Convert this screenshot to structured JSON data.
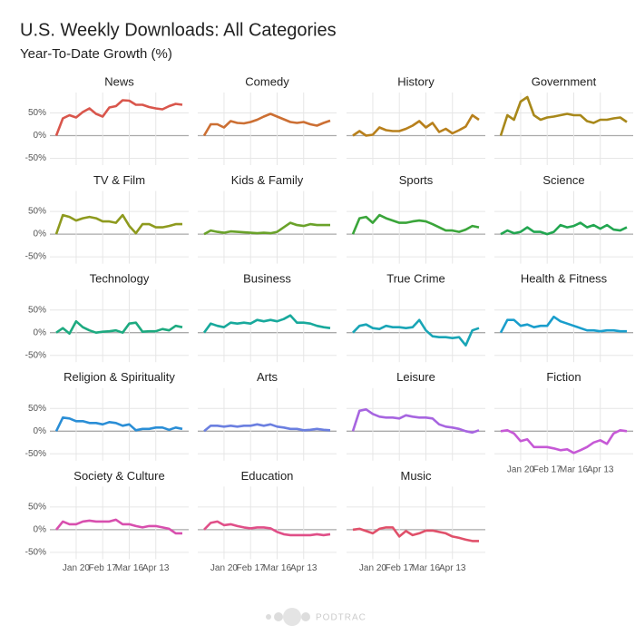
{
  "chart_data": {
    "type": "line",
    "title": "U.S. Weekly Downloads: All Categories",
    "subtitle": "Year-To-Date Growth (%)",
    "source": "PODTRAC",
    "x": [
      "Dec 30",
      "Jan 6",
      "Jan 13",
      "Jan 20",
      "Jan 27",
      "Feb 3",
      "Feb 10",
      "Feb 17",
      "Feb 24",
      "Mar 2",
      "Mar 9",
      "Mar 16",
      "Mar 23",
      "Mar 30",
      "Apr 6",
      "Apr 13",
      "Apr 20",
      "Apr 27",
      "May 4",
      "May 11"
    ],
    "xticks": [
      "Jan 20",
      "Feb 17",
      "Mar 16",
      "Apr 13"
    ],
    "ylim": [
      -65,
      95
    ],
    "yticks": [
      {
        "value": -50,
        "label": "-50%"
      },
      {
        "value": 0,
        "label": "0%"
      },
      {
        "value": 50,
        "label": "50%"
      }
    ],
    "grid": true,
    "series": [
      {
        "name": "News",
        "color": "#d9564c",
        "values": [
          0,
          38,
          45,
          40,
          52,
          60,
          48,
          42,
          62,
          65,
          78,
          77,
          68,
          68,
          63,
          60,
          58,
          65,
          70,
          68
        ]
      },
      {
        "name": "Comedy",
        "color": "#cc6f33",
        "values": [
          0,
          25,
          25,
          18,
          32,
          28,
          27,
          30,
          35,
          42,
          48,
          42,
          36,
          30,
          28,
          30,
          25,
          22,
          28,
          33
        ]
      },
      {
        "name": "History",
        "color": "#b8801c",
        "values": [
          0,
          10,
          0,
          2,
          18,
          12,
          10,
          10,
          15,
          22,
          32,
          18,
          28,
          8,
          15,
          5,
          12,
          20,
          45,
          35
        ]
      },
      {
        "name": "Government",
        "color": "#a8881a",
        "values": [
          0,
          45,
          35,
          75,
          85,
          45,
          35,
          40,
          42,
          45,
          48,
          45,
          45,
          32,
          28,
          35,
          35,
          38,
          40,
          30
        ]
      },
      {
        "name": "TV & Film",
        "color": "#8e9a1e",
        "values": [
          0,
          42,
          38,
          30,
          35,
          38,
          35,
          28,
          28,
          25,
          42,
          18,
          2,
          22,
          22,
          15,
          15,
          18,
          22,
          22
        ]
      },
      {
        "name": "Kids & Family",
        "color": "#6aa22a",
        "values": [
          0,
          8,
          5,
          3,
          6,
          5,
          4,
          3,
          2,
          3,
          2,
          5,
          15,
          25,
          20,
          18,
          22,
          20,
          20,
          20
        ]
      },
      {
        "name": "Sports",
        "color": "#3aa53a",
        "values": [
          0,
          35,
          38,
          25,
          42,
          35,
          30,
          25,
          25,
          28,
          30,
          28,
          22,
          15,
          8,
          8,
          5,
          10,
          18,
          15
        ]
      },
      {
        "name": "Science",
        "color": "#22a650",
        "values": [
          0,
          8,
          2,
          5,
          15,
          5,
          5,
          0,
          5,
          20,
          15,
          18,
          25,
          15,
          20,
          12,
          20,
          10,
          8,
          15
        ]
      },
      {
        "name": "Technology",
        "color": "#1daa80",
        "values": [
          0,
          10,
          -2,
          25,
          12,
          5,
          0,
          2,
          3,
          5,
          0,
          20,
          22,
          2,
          3,
          3,
          8,
          5,
          15,
          12
        ]
      },
      {
        "name": "Business",
        "color": "#18a99c",
        "values": [
          0,
          20,
          15,
          12,
          22,
          20,
          22,
          20,
          28,
          25,
          28,
          25,
          30,
          38,
          22,
          22,
          20,
          15,
          12,
          10
        ]
      },
      {
        "name": "True Crime",
        "color": "#19a5b6",
        "values": [
          0,
          15,
          18,
          10,
          8,
          15,
          12,
          12,
          10,
          12,
          28,
          5,
          -8,
          -10,
          -10,
          -12,
          -10,
          -28,
          5,
          10
        ]
      },
      {
        "name": "Health & Fitness",
        "color": "#1a9ecc",
        "values": [
          0,
          28,
          28,
          15,
          18,
          12,
          15,
          15,
          35,
          25,
          20,
          15,
          10,
          5,
          5,
          3,
          5,
          5,
          3,
          3
        ]
      },
      {
        "name": "Religion & Spirituality",
        "color": "#2a8ed6",
        "values": [
          0,
          30,
          28,
          22,
          22,
          18,
          18,
          15,
          20,
          18,
          12,
          15,
          2,
          5,
          5,
          8,
          8,
          3,
          8,
          5
        ]
      },
      {
        "name": "Arts",
        "color": "#6b7fe0",
        "values": [
          0,
          12,
          12,
          10,
          12,
          10,
          12,
          12,
          15,
          12,
          15,
          10,
          8,
          5,
          5,
          2,
          3,
          5,
          3,
          2
        ]
      },
      {
        "name": "Leisure",
        "color": "#a765e0",
        "values": [
          0,
          45,
          48,
          38,
          32,
          30,
          30,
          28,
          35,
          32,
          30,
          30,
          28,
          15,
          10,
          8,
          5,
          0,
          -3,
          2
        ]
      },
      {
        "name": "Fiction",
        "color": "#c659d6",
        "values": [
          0,
          2,
          -5,
          -22,
          -18,
          -35,
          -35,
          -35,
          -38,
          -42,
          -40,
          -48,
          -42,
          -35,
          -25,
          -20,
          -28,
          -5,
          2,
          0
        ]
      },
      {
        "name": "Society & Culture",
        "color": "#d84fae",
        "values": [
          0,
          18,
          12,
          12,
          18,
          20,
          18,
          18,
          18,
          22,
          12,
          12,
          8,
          5,
          8,
          8,
          5,
          2,
          -8,
          -8
        ]
      },
      {
        "name": "Education",
        "color": "#e04f88",
        "values": [
          0,
          15,
          18,
          10,
          12,
          8,
          5,
          3,
          5,
          5,
          3,
          -5,
          -10,
          -12,
          -12,
          -12,
          -12,
          -10,
          -12,
          -10
        ]
      },
      {
        "name": "Music",
        "color": "#e0506a",
        "values": [
          0,
          2,
          -3,
          -8,
          2,
          5,
          5,
          -15,
          -3,
          -12,
          -8,
          -2,
          -2,
          -5,
          -8,
          -15,
          -18,
          -22,
          -25,
          -25
        ]
      }
    ]
  }
}
